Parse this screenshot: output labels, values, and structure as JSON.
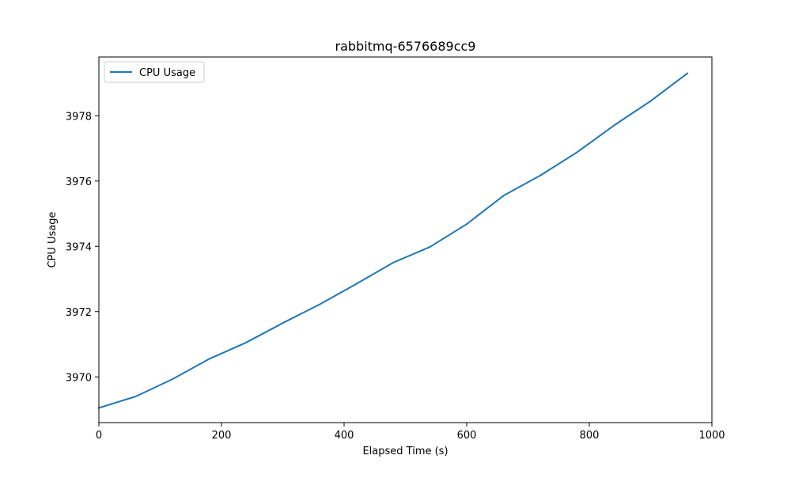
{
  "chart_data": {
    "type": "line",
    "title": "rabbitmq-6576689cc9",
    "xlabel": "Elapsed Time (s)",
    "ylabel": "CPU Usage",
    "xlim": [
      0,
      1000
    ],
    "ylim": [
      3968.6,
      3979.8
    ],
    "x_ticks": [
      0,
      200,
      400,
      600,
      800,
      1000
    ],
    "y_ticks": [
      3970,
      3972,
      3974,
      3976,
      3978
    ],
    "grid": false,
    "legend": {
      "position": "top-left",
      "entries": [
        "CPU Usage"
      ]
    },
    "series": [
      {
        "name": "CPU Usage",
        "color": "#1f77b4",
        "x": [
          0,
          60,
          120,
          180,
          240,
          300,
          360,
          420,
          480,
          540,
          600,
          660,
          720,
          780,
          840,
          900,
          960
        ],
        "values": [
          3969.05,
          3969.4,
          3969.93,
          3970.55,
          3971.05,
          3971.65,
          3972.22,
          3972.85,
          3973.5,
          3973.98,
          3974.68,
          3975.55,
          3976.17,
          3976.88,
          3977.7,
          3978.45,
          3979.3
        ]
      }
    ]
  }
}
